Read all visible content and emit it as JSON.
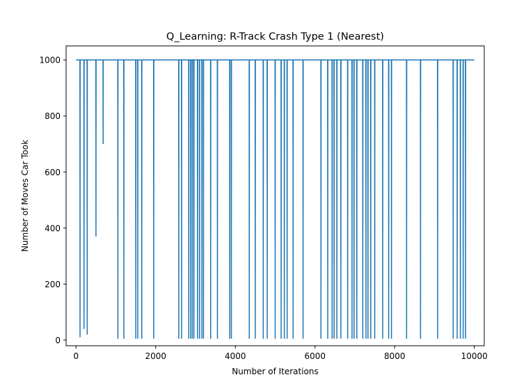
{
  "chart_data": {
    "type": "line",
    "title": "Q_Learning: R-Track Crash Type 1 (Nearest)",
    "xlabel": "Number of Iterations",
    "ylabel": "Number of Moves Car Took",
    "xlim": [
      -250,
      10250
    ],
    "ylim": [
      -20,
      1050
    ],
    "xticks": [
      0,
      2000,
      4000,
      6000,
      8000,
      10000
    ],
    "yticks": [
      0,
      200,
      400,
      600,
      800,
      1000
    ],
    "xtick_labels": [
      "0",
      "2000",
      "4000",
      "6000",
      "8000",
      "10000"
    ],
    "ytick_labels": [
      "0",
      "200",
      "400",
      "600",
      "800",
      "1000"
    ],
    "grid": false,
    "legend": "none",
    "series_color": "#1f77b4",
    "baseline": 1000,
    "x_end": 10000,
    "dips": [
      {
        "x": 100,
        "y": 10
      },
      {
        "x": 200,
        "y": 40
      },
      {
        "x": 280,
        "y": 20
      },
      {
        "x": 500,
        "y": 370
      },
      {
        "x": 680,
        "y": 700
      },
      {
        "x": 1050,
        "y": 5
      },
      {
        "x": 1200,
        "y": 5
      },
      {
        "x": 1500,
        "y": 5
      },
      {
        "x": 1550,
        "y": 5
      },
      {
        "x": 1650,
        "y": 5
      },
      {
        "x": 1950,
        "y": 5
      },
      {
        "x": 2580,
        "y": 5
      },
      {
        "x": 2650,
        "y": 5
      },
      {
        "x": 2830,
        "y": 5
      },
      {
        "x": 2880,
        "y": 5
      },
      {
        "x": 2920,
        "y": 5
      },
      {
        "x": 2960,
        "y": 5
      },
      {
        "x": 3050,
        "y": 5
      },
      {
        "x": 3100,
        "y": 5
      },
      {
        "x": 3160,
        "y": 5
      },
      {
        "x": 3200,
        "y": 5
      },
      {
        "x": 3380,
        "y": 5
      },
      {
        "x": 3550,
        "y": 5
      },
      {
        "x": 3860,
        "y": 5
      },
      {
        "x": 3900,
        "y": 5
      },
      {
        "x": 4350,
        "y": 5
      },
      {
        "x": 4500,
        "y": 5
      },
      {
        "x": 4700,
        "y": 5
      },
      {
        "x": 4800,
        "y": 5
      },
      {
        "x": 5000,
        "y": 5
      },
      {
        "x": 5150,
        "y": 5
      },
      {
        "x": 5230,
        "y": 5
      },
      {
        "x": 5300,
        "y": 5
      },
      {
        "x": 5450,
        "y": 5
      },
      {
        "x": 5700,
        "y": 5
      },
      {
        "x": 6150,
        "y": 5
      },
      {
        "x": 6320,
        "y": 5
      },
      {
        "x": 6430,
        "y": 5
      },
      {
        "x": 6480,
        "y": 5
      },
      {
        "x": 6550,
        "y": 5
      },
      {
        "x": 6650,
        "y": 5
      },
      {
        "x": 6820,
        "y": 5
      },
      {
        "x": 6930,
        "y": 5
      },
      {
        "x": 6980,
        "y": 5
      },
      {
        "x": 7050,
        "y": 5
      },
      {
        "x": 7200,
        "y": 5
      },
      {
        "x": 7280,
        "y": 5
      },
      {
        "x": 7330,
        "y": 5
      },
      {
        "x": 7400,
        "y": 5
      },
      {
        "x": 7500,
        "y": 5
      },
      {
        "x": 7700,
        "y": 5
      },
      {
        "x": 7850,
        "y": 5
      },
      {
        "x": 7920,
        "y": 5
      },
      {
        "x": 8300,
        "y": 5
      },
      {
        "x": 8650,
        "y": 5
      },
      {
        "x": 9080,
        "y": 5
      },
      {
        "x": 9470,
        "y": 5
      },
      {
        "x": 9570,
        "y": 5
      },
      {
        "x": 9650,
        "y": 5
      },
      {
        "x": 9720,
        "y": 5
      },
      {
        "x": 9780,
        "y": 5
      }
    ]
  }
}
